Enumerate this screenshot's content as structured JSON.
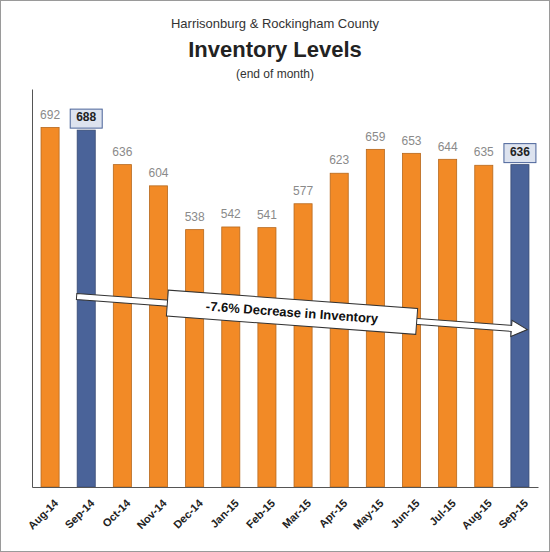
{
  "chart_data": {
    "type": "bar",
    "header": "Harrisonburg & Rockingham County",
    "title": "Inventory Levels",
    "subtitle": "(end of month)",
    "annotation": "-7.6% Decrease in Inventory",
    "categories": [
      "Aug-14",
      "Sep-14",
      "Oct-14",
      "Nov-14",
      "Dec-14",
      "Jan-15",
      "Feb-15",
      "Mar-15",
      "Apr-15",
      "May-15",
      "Jun-15",
      "Jul-15",
      "Aug-15",
      "Sep-15"
    ],
    "values": [
      692,
      688,
      636,
      604,
      538,
      542,
      541,
      577,
      623,
      659,
      653,
      644,
      635,
      636
    ],
    "colors": [
      "#f28a26",
      "#4a6399",
      "#f28a26",
      "#f28a26",
      "#f28a26",
      "#f28a26",
      "#f28a26",
      "#f28a26",
      "#f28a26",
      "#f28a26",
      "#f28a26",
      "#f28a26",
      "#f28a26",
      "#4a6399"
    ],
    "ylim": [
      150,
      750
    ],
    "data_labels": true,
    "tick_labels": "x",
    "grid": false
  }
}
